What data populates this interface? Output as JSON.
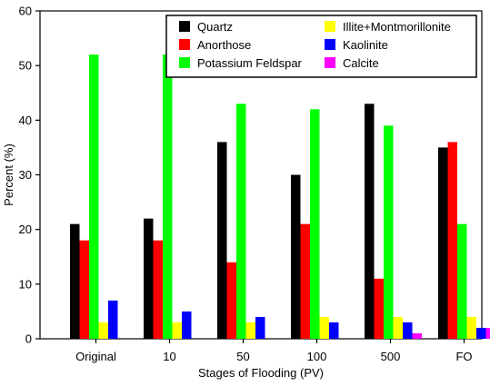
{
  "chart_data": {
    "type": "bar",
    "xlabel": "Stages of Flooding (PV)",
    "ylabel": "Percent (%)",
    "ylim": [
      0,
      60
    ],
    "yticks": [
      0,
      10,
      20,
      30,
      40,
      50,
      60
    ],
    "categories": [
      "Original",
      "10",
      "50",
      "100",
      "500",
      "FO"
    ],
    "series": [
      {
        "name": "Quartz",
        "color": "#000000",
        "values": [
          21,
          22,
          36,
          30,
          43,
          35
        ]
      },
      {
        "name": "Anorthose",
        "color": "#ff0000",
        "values": [
          18,
          18,
          14,
          21,
          11,
          36
        ]
      },
      {
        "name": "Potassium Feldspar",
        "color": "#00ff00",
        "values": [
          52,
          52,
          43,
          42,
          39,
          21
        ]
      },
      {
        "name": "Illite+Montmorillonite",
        "color": "#ffff00",
        "values": [
          3,
          3,
          3,
          4,
          4,
          4
        ]
      },
      {
        "name": "Kaolinite",
        "color": "#0000ff",
        "values": [
          7,
          5,
          4,
          3,
          3,
          2
        ]
      },
      {
        "name": "Calcite",
        "color": "#ff00ff",
        "values": [
          0,
          0,
          0,
          0,
          1,
          2
        ]
      }
    ],
    "legend_position": "top-right",
    "grid": false
  }
}
